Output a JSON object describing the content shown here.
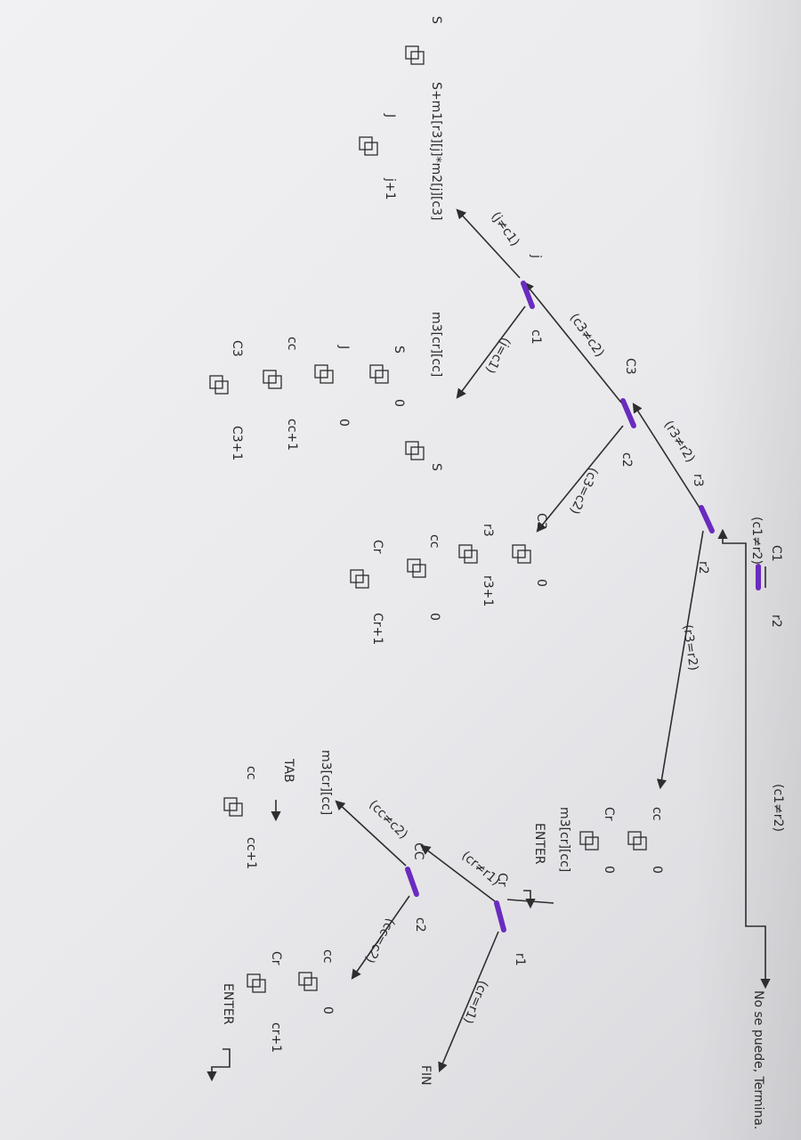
{
  "diagram": {
    "root": {
      "left": "C1",
      "right": "r2",
      "cond_left": "(c1≠r2)",
      "cond_right": "(c1≠r2)",
      "no_result": "No se puede, Termina."
    },
    "r3_node": {
      "label": "r3",
      "right_label": "r2",
      "cond_left": "(r3≠r2)",
      "cond_right": "(r3=r2)"
    },
    "c3_node": {
      "label": "C3",
      "right_label": "c2",
      "cond_left": "(c3≠c2)",
      "cond_right": "(c3=c2)"
    },
    "j_node": {
      "label": "j",
      "right_label": "c1",
      "cond_left": "(j≠c1)",
      "cond_right": "(j=c1)"
    },
    "j_branch": {
      "s_assign": "S",
      "s_expr": "S+m1[r3][j]*m2[j][c3]",
      "j_assign": "J",
      "j_expr": "j+1"
    },
    "j_end": {
      "m3_expr": "m3[cr][cc]",
      "s_var": "S",
      "s_zero_var": "S",
      "s_zero_val": "0",
      "j_var": "J",
      "j_val": "0",
      "cc_var": "cc",
      "cc_expr": "cc+1",
      "c3_var": "C3",
      "c3_expr": "C3+1"
    },
    "c3_end": {
      "c3_var": "C3",
      "c3_val": "0",
      "r3_var": "r3",
      "r3_expr": "r3+1",
      "cc_var": "cc",
      "cc_val": "0",
      "cr_var": "Cr",
      "cr_expr": "Cr+1"
    },
    "r3_end": {
      "cc_var": "cc",
      "cc_val": "0",
      "cr_var": "Cr",
      "cr_val": "0",
      "m3_expr": "m3[cr][cc]",
      "enter_label": "ENTER"
    },
    "cr_node": {
      "label": "Cr",
      "right_label": "r1",
      "cond_left": "(cr≠r1)",
      "cond_right": "(cr=r1)",
      "end_label": "FIN"
    },
    "cc_node": {
      "label": "CC",
      "right_label": "c2",
      "cond_left": "(cc≠c2)",
      "cond_right": "(cc=c2)"
    },
    "cc_left": {
      "m3_expr": "m3[cr][cc]",
      "tab_label": "TAB",
      "cc_var": "cc",
      "cc_expr": "cc+1"
    },
    "cc_right": {
      "cc_var": "cc",
      "cc_val": "0",
      "cr_var": "Cr",
      "cr_expr": "cr+1",
      "enter_label": "ENTER"
    }
  }
}
